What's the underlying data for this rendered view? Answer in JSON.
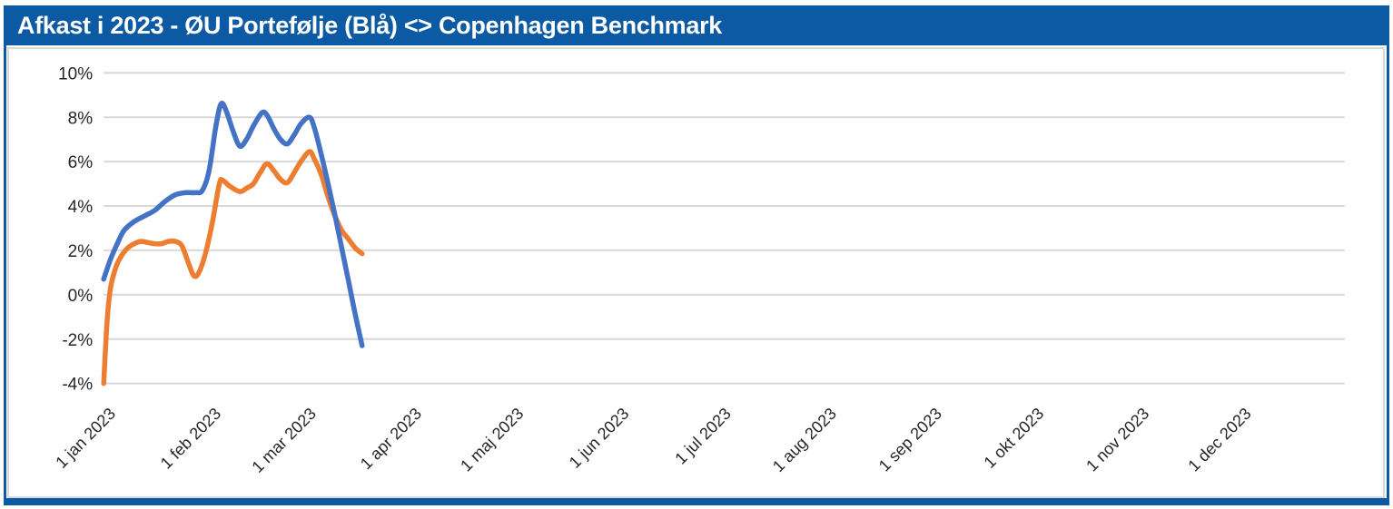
{
  "header": {
    "title": "Afkast i 2023 - ØU Portefølje (Blå) <> Copenhagen Benchmark"
  },
  "theme": {
    "frame_color": "#0c59a4",
    "title_text_color": "#ffffff",
    "panel_border_color": "#d9d9d9",
    "grid_color": "#d9d9d9",
    "axis_text_color": "#262626",
    "portfolio_line_color": "#4472C4",
    "benchmark_line_color": "#ED7D31"
  },
  "chart_data": {
    "type": "line",
    "title": "Afkast i 2023 - ØU Portefølje (Blå) <> Copenhagen Benchmark",
    "x_axis": {
      "tick_labels": [
        "1 jan 2023",
        "1 feb 2023",
        "1 mar 2023",
        "1 apr 2023",
        "1 maj 2023",
        "1 jun 2023",
        "1 jul 2023",
        "1 aug 2023",
        "1 sep 2023",
        "1 okt 2023",
        "1 nov 2023",
        "1 dec 2023"
      ],
      "tick_days": [
        0,
        31,
        59,
        90,
        120,
        151,
        181,
        212,
        243,
        273,
        304,
        334
      ],
      "domain_days": [
        0,
        365
      ],
      "label_rotation_deg": -45
    },
    "y_axis": {
      "tick_labels": [
        "10%",
        "8%",
        "6%",
        "4%",
        "2%",
        "0%",
        "-2%",
        "-4%"
      ],
      "tick_values": [
        10,
        8,
        6,
        4,
        2,
        0,
        -2,
        -4
      ],
      "range": [
        -4,
        10
      ],
      "unit": "%"
    },
    "grid": {
      "horizontal": true,
      "vertical": false
    },
    "legend": {
      "visible": false
    },
    "series": [
      {
        "name": "ØU Portefølje (Blå)",
        "key": "portfolio",
        "color": "#4472C4",
        "style": "smooth",
        "points": [
          [
            0,
            0.7
          ],
          [
            2,
            1.6
          ],
          [
            4,
            2.3
          ],
          [
            6,
            2.9
          ],
          [
            9,
            3.3
          ],
          [
            12,
            3.55
          ],
          [
            15,
            3.8
          ],
          [
            18,
            4.2
          ],
          [
            21,
            4.5
          ],
          [
            24,
            4.6
          ],
          [
            27,
            4.6
          ],
          [
            29,
            4.7
          ],
          [
            31,
            5.6
          ],
          [
            33,
            7.6
          ],
          [
            34.5,
            8.6
          ],
          [
            36,
            8.3
          ],
          [
            38,
            7.4
          ],
          [
            40,
            6.7
          ],
          [
            42,
            7.0
          ],
          [
            44,
            7.6
          ],
          [
            46.5,
            8.2
          ],
          [
            48,
            8.1
          ],
          [
            50,
            7.5
          ],
          [
            52,
            7.0
          ],
          [
            54,
            6.8
          ],
          [
            56,
            7.2
          ],
          [
            58,
            7.7
          ],
          [
            60.5,
            8.0
          ],
          [
            62,
            7.5
          ],
          [
            64,
            6.3
          ],
          [
            66,
            5.0
          ],
          [
            68,
            3.6
          ],
          [
            70,
            2.1
          ],
          [
            72,
            0.6
          ],
          [
            74,
            -0.9
          ],
          [
            76,
            -2.3
          ]
        ]
      },
      {
        "name": "Copenhagen Benchmark",
        "key": "benchmark",
        "color": "#ED7D31",
        "style": "smooth",
        "points": [
          [
            0,
            -4.0
          ],
          [
            1,
            -1.2
          ],
          [
            2,
            0.3
          ],
          [
            3.5,
            1.2
          ],
          [
            5,
            1.7
          ],
          [
            7,
            2.1
          ],
          [
            9,
            2.3
          ],
          [
            11,
            2.4
          ],
          [
            13,
            2.35
          ],
          [
            15,
            2.3
          ],
          [
            17,
            2.3
          ],
          [
            19,
            2.4
          ],
          [
            21,
            2.4
          ],
          [
            23,
            2.2
          ],
          [
            25,
            1.4
          ],
          [
            26.5,
            0.85
          ],
          [
            28,
            1.0
          ],
          [
            30,
            1.9
          ],
          [
            32,
            3.3
          ],
          [
            34,
            5.0
          ],
          [
            35,
            5.15
          ],
          [
            37,
            4.9
          ],
          [
            40,
            4.65
          ],
          [
            42,
            4.8
          ],
          [
            44,
            5.0
          ],
          [
            46,
            5.5
          ],
          [
            48,
            5.9
          ],
          [
            50,
            5.6
          ],
          [
            52,
            5.2
          ],
          [
            54,
            5.05
          ],
          [
            56,
            5.5
          ],
          [
            58,
            6.0
          ],
          [
            60.5,
            6.45
          ],
          [
            62,
            6.1
          ],
          [
            64,
            5.4
          ],
          [
            66,
            4.4
          ],
          [
            68,
            3.55
          ],
          [
            70,
            2.9
          ],
          [
            72,
            2.5
          ],
          [
            74,
            2.1
          ],
          [
            76,
            1.85
          ]
        ]
      }
    ]
  }
}
